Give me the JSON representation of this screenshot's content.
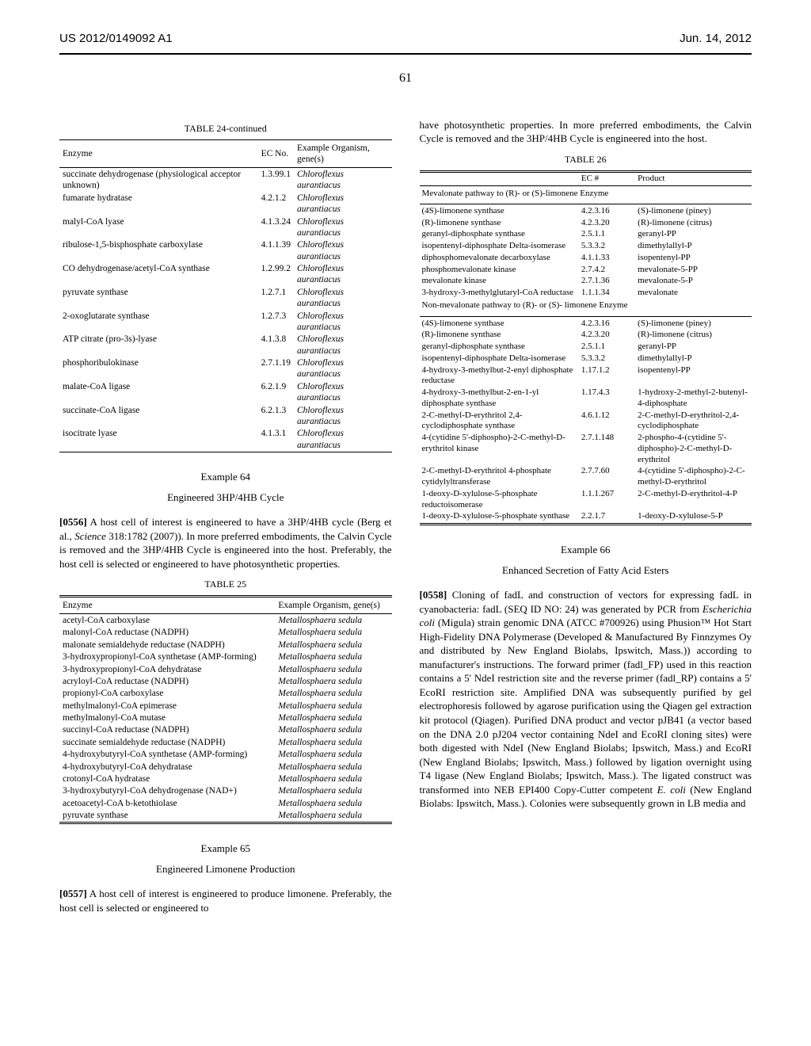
{
  "header": {
    "docNumber": "US 2012/0149092 A1",
    "date": "Jun. 14, 2012",
    "pageNum": "61"
  },
  "table24": {
    "title": "TABLE 24-continued",
    "headers": [
      "Enzyme",
      "EC No.",
      "Example Organism, gene(s)"
    ],
    "rows": [
      [
        "succinate dehydrogenase (physiological acceptor unknown)",
        "1.3.99.1",
        "Chloroflexus aurantiacus"
      ],
      [
        "fumarate hydratase",
        "4.2.1.2",
        "Chloroflexus aurantiacus"
      ],
      [
        "malyl-CoA lyase",
        "4.1.3.24",
        "Chloroflexus aurantiacus"
      ],
      [
        "ribulose-1,5-bisphosphate carboxylase",
        "4.1.1.39",
        "Chloroflexus aurantiacus"
      ],
      [
        "CO dehydrogenase/acetyl-CoA synthase",
        "1.2.99.2",
        "Chloroflexus aurantiacus"
      ],
      [
        "pyruvate synthase",
        "1.2.7.1",
        "Chloroflexus aurantiacus"
      ],
      [
        "2-oxoglutarate synthase",
        "1.2.7.3",
        "Chloroflexus aurantiacus"
      ],
      [
        "ATP citrate (pro-3s)-lyase",
        "4.1.3.8",
        "Chloroflexus aurantiacus"
      ],
      [
        "phosphoribulokinase",
        "2.7.1.19",
        "Chloroflexus aurantiacus"
      ],
      [
        "malate-CoA ligase",
        "6.2.1.9",
        "Chloroflexus aurantiacus"
      ],
      [
        "succinate-CoA ligase",
        "6.2.1.3",
        "Chloroflexus aurantiacus"
      ],
      [
        "isocitrate lyase",
        "4.1.3.1",
        "Chloroflexus aurantiacus"
      ]
    ]
  },
  "example64": {
    "head": "Example 64",
    "title": "Engineered 3HP/4HB Cycle",
    "paraNum": "[0556]",
    "paraText": " A host cell of interest is engineered to have a 3HP/4HB cycle (Berg et al., Science 318:1782 (2007)). In more preferred embodiments, the Calvin Cycle is removed and the 3HP/4HB Cycle is engineered into the host. Preferably, the host cell is selected or engineered to have photosynthetic properties."
  },
  "table25": {
    "title": "TABLE 25",
    "headers": [
      "Enzyme",
      "Example Organism, gene(s)"
    ],
    "rows": [
      [
        "acetyl-CoA carboxylase",
        "Metallosphaera sedula"
      ],
      [
        "malonyl-CoA reductase (NADPH)",
        "Metallosphaera sedula"
      ],
      [
        "malonate semialdehyde reductase (NADPH)",
        "Metallosphaera sedula"
      ],
      [
        "3-hydroxypropionyl-CoA synthetase (AMP-forming)",
        "Metallosphaera sedula"
      ],
      [
        "3-hydroxypropionyl-CoA dehydratase",
        "Metallosphaera sedula"
      ],
      [
        "acryloyl-CoA reductase (NADPH)",
        "Metallosphaera sedula"
      ],
      [
        "propionyl-CoA carboxylase",
        "Metallosphaera sedula"
      ],
      [
        "methylmalonyl-CoA epimerase",
        "Metallosphaera sedula"
      ],
      [
        "methylmalonyl-CoA mutase",
        "Metallosphaera sedula"
      ],
      [
        "succinyl-CoA reductase (NADPH)",
        "Metallosphaera sedula"
      ],
      [
        "succinate semialdehyde reductase (NADPH)",
        "Metallosphaera sedula"
      ],
      [
        "4-hydroxybutyryl-CoA synthetase (AMP-forming)",
        "Metallosphaera sedula"
      ],
      [
        "4-hydroxybutyryl-CoA dehydratase",
        "Metallosphaera sedula"
      ],
      [
        "crotonyl-CoA hydratase",
        "Metallosphaera sedula"
      ],
      [
        "3-hydroxybutyryl-CoA dehydrogenase (NAD+)",
        "Metallosphaera sedula"
      ],
      [
        "acetoacetyl-CoA b-ketothiolase",
        "Metallosphaera sedula"
      ],
      [
        "pyruvate synthase",
        "Metallosphaera sedula"
      ]
    ]
  },
  "example65": {
    "head": "Example 65",
    "title": "Engineered Limonene Production",
    "paraNum": "[0557]",
    "paraText": " A host cell of interest is engineered to produce limonene. Preferably, the host cell is selected or engineered to"
  },
  "rightIntro": "have photosynthetic properties. In more preferred embodiments, the Calvin Cycle is removed and the 3HP/4HB Cycle is engineered into the host.",
  "table26": {
    "title": "TABLE 26",
    "headers": [
      "",
      "EC #",
      "Product"
    ],
    "section1Head": "Mevalonate pathway to (R)- or (S)-limonene Enzyme",
    "rows1": [
      [
        "(4S)-limonene synthase",
        "4.2.3.16",
        "(S)-limonene (piney)"
      ],
      [
        "(R)-limonene synthase",
        "4.2.3.20",
        "(R)-limonene (citrus)"
      ],
      [
        "geranyl-diphosphate synthase",
        "2.5.1.1",
        "geranyl-PP"
      ],
      [
        "isopentenyl-diphosphate Delta-isomerase",
        "5.3.3.2",
        "dimethylallyl-P"
      ],
      [
        "diphosphomevalonate decarboxylase",
        "4.1.1.33",
        "isopentenyl-PP"
      ],
      [
        "phosphomevalonate kinase",
        "2.7.4.2",
        "mevalonate-5-PP"
      ],
      [
        "mevalonate kinase",
        "2.7.1.36",
        "mevalonate-5-P"
      ],
      [
        "3-hydroxy-3-methylglutaryl-CoA reductase",
        "1.1.1.34",
        "mevalonate"
      ]
    ],
    "section2Head": "Non-mevalonate pathway to (R)- or (S)- limonene Enzyme",
    "rows2": [
      [
        "(4S)-limonene synthase",
        "4.2.3.16",
        "(S)-limonene (piney)"
      ],
      [
        "(R)-limonene synthase",
        "4.2.3.20",
        "(R)-limonene (citrus)"
      ],
      [
        "geranyl-diphosphate synthase",
        "2.5.1.1",
        "geranyl-PP"
      ],
      [
        "isopentenyl-diphosphate Delta-isomerase",
        "5.3.3.2",
        "dimethylallyl-P"
      ],
      [
        "4-hydroxy-3-methylbut-2-enyl diphosphate reductase",
        "1.17.1.2",
        "isopentenyl-PP"
      ],
      [
        "4-hydroxy-3-methylbut-2-en-1-yl diphosphate synthase",
        "1.17.4.3",
        "1-hydroxy-2-methyl-2-butenyl-4-diphosphate"
      ],
      [
        "2-C-methyl-D-erythritol 2,4-cyclodiphosphate synthase",
        "4.6.1.12",
        "2-C-methyl-D-erythritol-2,4-cyclodiphosphate"
      ],
      [
        "4-(cytidine 5'-diphospho)-2-C-methyl-D-erythritol kinase",
        "2.7.1.148",
        "2-phospho-4-(cytidine 5'-diphospho)-2-C-methyl-D-erythritol"
      ],
      [
        "2-C-methyl-D-erythritol 4-phosphate cytidylyltransferase",
        "2.7.7.60",
        "4-(cytidine 5'-diphospho)-2-C-methyl-D-erythritol"
      ],
      [
        "1-deoxy-D-xylulose-5-phosphate reductoisomerase",
        "1.1.1.267",
        "2-C-methyl-D-erythritol-4-P"
      ],
      [
        "1-deoxy-D-xylulose-5-phosphate synthase",
        "2.2.1.7",
        "1-deoxy-D-xylulose-5-P"
      ]
    ]
  },
  "example66": {
    "head": "Example 66",
    "title": "Enhanced Secretion of Fatty Acid Esters",
    "paraNum": "[0558]",
    "paraText": " Cloning of fadL and construction of vectors for expressing fadL in cyanobacteria: fadL (SEQ ID NO: 24) was generated by PCR from Escherichia coli (Migula) strain genomic DNA (ATCC #700926) using Phusion™ Hot Start High-Fidelity DNA Polymerase (Developed & Manufactured By Finnzymes Oy and distributed by New England Biolabs, Ipswitch, Mass.)) according to manufacturer's instructions. The forward primer (fadl_FP) used in this reaction contains a 5' NdeI restriction site and the reverse primer (fadl_RP) contains a 5' EcoRI restriction site. Amplified DNA was subsequently purified by gel electrophoresis followed by agarose purification using the Qiagen gel extraction kit protocol (Qiagen). Purified DNA product and vector pJB41 (a vector based on the DNA 2.0 pJ204 vector containing NdeI and EcoRI cloning sites) were both digested with NdeI (New England Biolabs; Ipswitch, Mass.) and EcoRI (New England Biolabs; Ipswitch, Mass.) followed by ligation overnight using T4 ligase (New England Biolabs; Ipswitch, Mass.). The ligated construct was transformed into NEB EPI400 Copy-Cutter competent E. coli (New England Biolabs: Ipswitch, Mass.). Colonies were subsequently grown in LB media and"
  }
}
